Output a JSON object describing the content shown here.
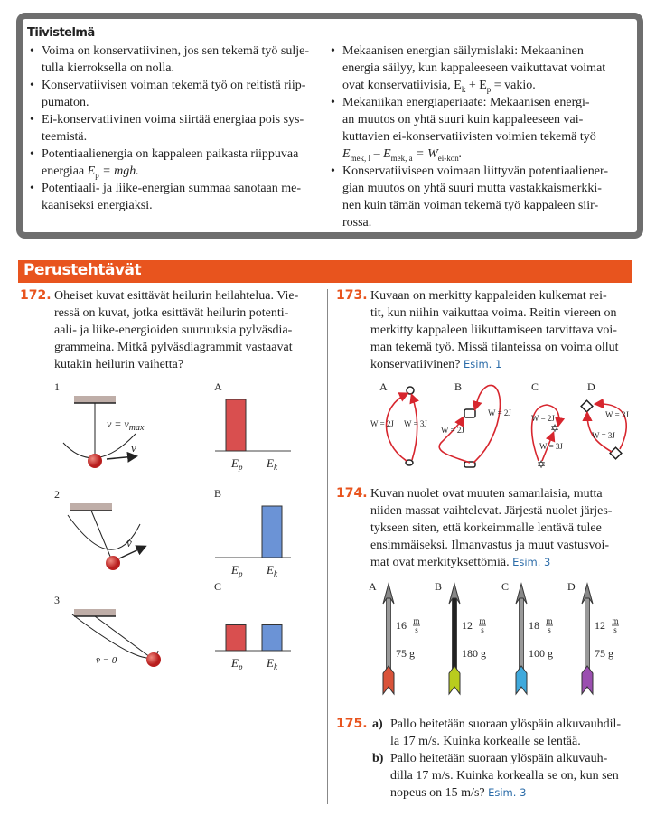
{
  "summary": {
    "title": "Tiivistelmä",
    "left": [
      [
        "Voima on konservatiivinen, jos sen tekemä työ sulje-",
        "tulla kierroksella on nolla."
      ],
      [
        "Konservatiivisen voiman tekemä työ on reitistä riip-",
        "pumaton."
      ],
      [
        "Ei-konservatiivinen voima siirtää energiaa pois sys-",
        "teemistä."
      ],
      [
        "Potentiaalienergia on kappaleen paikasta riippuvaa",
        "E",
        "p",
        " = mgh."
      ],
      [
        "Potentiaali- ja liike-energian summaa sanotaan me-",
        "kaaniseksi energiaksi."
      ]
    ],
    "right": {
      "b1": [
        "Mekaanisen energian säilymislaki: Mekaaninen",
        "energia säilyy, kun kappaleeseen vaikuttavat voimat",
        "ovat konservatiivisia, E",
        "k",
        " + E",
        "p",
        " = vakio."
      ],
      "b2": [
        "Mekaniikan energiaperiaate: Mekaanisen energi-",
        "an muutos on yhtä suuri kuin kappaleeseen vai-",
        "kuttavien ei-konservatiivisten voimien tekemä työ",
        "E",
        "mek, l",
        " – E",
        "mek, a",
        " = W",
        "ei-kon",
        "."
      ],
      "b3": [
        "Konservatiiviseen voimaan liittyvän potentiaaliener-",
        "gian muutos on yhtä suuri mutta vastakkaismerkki-",
        "nen kuin tämän voiman tekemä työ kappaleen siir-",
        "rossa."
      ]
    }
  },
  "section_title": "Perustehtävät",
  "tasks": {
    "t172": {
      "num": "172.",
      "lines": [
        "Oheiset kuvat esittävät heilurin heilahtelua. Vie-",
        "ressä on kuvat, jotka esittävät heilurin potenti-",
        "aali- ja liike-energioiden suuruuksia pylväsdia-",
        "grammeina. Mitkä pylväsdiagrammit vastaavat",
        "kutakin heilurin vaihetta?"
      ],
      "pendulums": [
        {
          "label": "1",
          "note": "v = v",
          "note_sub": "max",
          "vec": "v̄"
        },
        {
          "label": "2",
          "vec": "v̄"
        },
        {
          "label": "3",
          "note": "v̄ = 0"
        }
      ],
      "bars": [
        {
          "label": "A",
          "Ep": 1,
          "Ek": 0
        },
        {
          "label": "B",
          "Ep": 0,
          "Ek": 1
        },
        {
          "label": "C",
          "Ep": 0.5,
          "Ek": 0.5
        }
      ],
      "ep": "E",
      "ep_sub": "p",
      "ek": "E",
      "ek_sub": "k",
      "ep_color": "#d94f4f",
      "ek_color": "#6b93d6"
    },
    "t173": {
      "num": "173.",
      "lines": [
        "Kuvaan on merkitty kappaleiden kulkemat rei-",
        "tit, kun niihin vaikuttaa voima. Reitin viereen on",
        "merkitty kappaleen liikuttamiseen tarvittava voi-",
        "man tekemä työ. Missä tilanteissa on voima ollut",
        "konservatiivinen? "
      ],
      "esim": "Esim. 1",
      "paths": [
        {
          "label": "A",
          "w1": "W = 2J",
          "w2": "W = 3J"
        },
        {
          "label": "B",
          "w1": "W = 2J",
          "w2": "W = 2J"
        },
        {
          "label": "C",
          "w1": "W = 2J",
          "w2": "W = 3J"
        },
        {
          "label": "D",
          "w1": "W = 3J",
          "w2": "W = 3J"
        }
      ],
      "path_color": "#d7262e"
    },
    "t174": {
      "num": "174.",
      "lines": [
        "Kuvan nuolet ovat muuten samanlaisia, mutta",
        "niiden massat vaihtelevat. Järjestä nuolet järjes-",
        "tykseen siten, että korkeimmalle lentävä tulee",
        "ensimmäiseksi. Ilmanvastus ja muut vastusvoi-",
        "mat ovat merkityksettömiä. "
      ],
      "esim": "Esim. 3",
      "unit_num": "m",
      "unit_den": "s",
      "arrows": [
        {
          "label": "A",
          "speed": "16",
          "mass": "75 g",
          "color": "#d9533a"
        },
        {
          "label": "B",
          "speed": "12",
          "mass": "180 g",
          "color": "#b9cc1e"
        },
        {
          "label": "C",
          "speed": "18",
          "mass": "100 g",
          "color": "#3fa9dc"
        },
        {
          "label": "D",
          "speed": "12",
          "mass": "75 g",
          "color": "#9b4fb0"
        }
      ]
    },
    "t175": {
      "num": "175.",
      "a": "a)",
      "b": "b)",
      "a_lines": [
        "Pallo heitetään suoraan ylöspäin alkuvauhdil-",
        "la 17 m/s. Kuinka korkealle se lentää."
      ],
      "b_lines": [
        "Pallo heitetään suoraan ylöspäin alkuvauh-",
        "dilla 17 m/s. Kuinka korkealla se on, kun sen",
        "nopeus on 15 m/s? "
      ],
      "esim": "Esim. 3"
    }
  }
}
